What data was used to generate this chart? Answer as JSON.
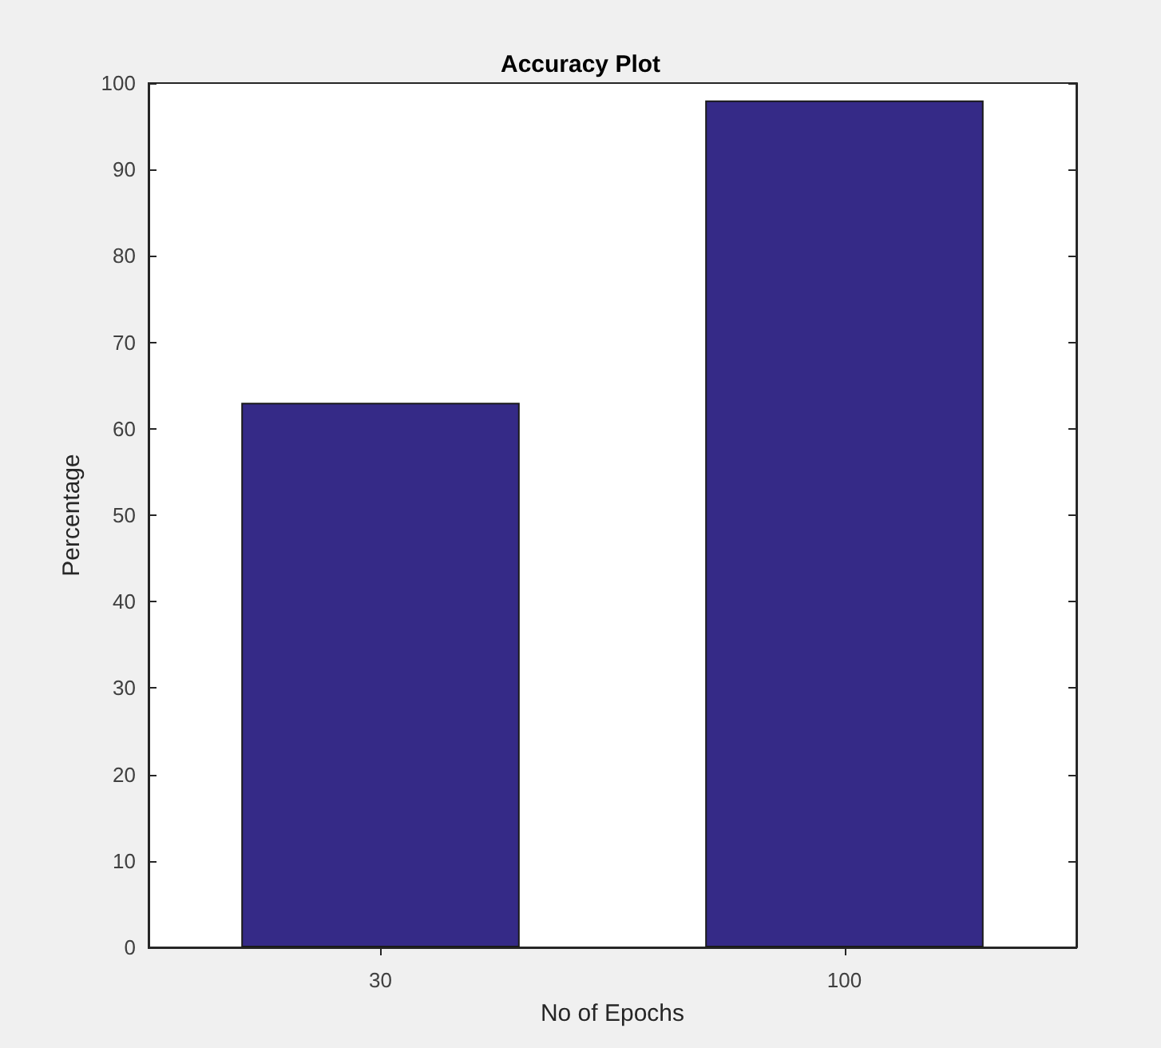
{
  "chart_data": {
    "type": "bar",
    "title": "Accuracy Plot",
    "xlabel": "No of Epochs",
    "ylabel": "Percentage",
    "categories": [
      "30",
      "100"
    ],
    "values": [
      63,
      98
    ],
    "color": "#352a87",
    "ylim": [
      0,
      100
    ],
    "yticks": [
      0,
      10,
      20,
      30,
      40,
      50,
      60,
      70,
      80,
      90,
      100
    ],
    "grid": false
  }
}
